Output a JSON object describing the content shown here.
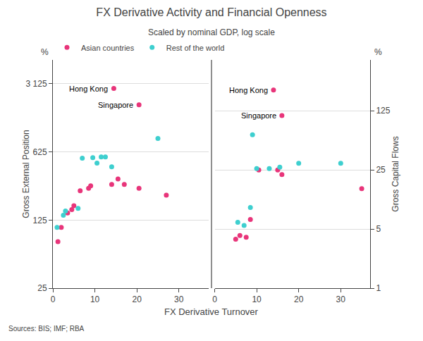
{
  "chart_data": [
    {
      "type": "scatter",
      "title": "FX Derivative Activity and Financial Openness",
      "subtitle": "Scaled by nominal GDP, log scale",
      "xlabel": "FX Derivative Turnover",
      "ylabel": "Gross External Position",
      "source": "Sources: BIS; IMF; RBA",
      "log": "y",
      "xlim": [
        0,
        37
      ],
      "xticks": [
        0,
        10,
        20,
        30
      ],
      "ylim": [
        25,
        5500
      ],
      "yticks": [
        25,
        125,
        625,
        {
          "value": 3125,
          "label": "3 125"
        }
      ],
      "grid": "y",
      "legend": "upper left",
      "series": [
        {
          "name": "Asian countries",
          "color": "#E8357A",
          "x": [
            1.2,
            2.0,
            3.5,
            4.5,
            5.0,
            6.5,
            8.5,
            9.0,
            14.0,
            15.5,
            17.0,
            20.5,
            27.0,
            14.5,
            20.5
          ],
          "values": [
            75,
            105,
            148,
            160,
            175,
            250,
            265,
            280,
            290,
            330,
            290,
            265,
            225,
            2800,
            1900
          ]
        },
        {
          "name": "Rest of the world",
          "color": "#3ECFCF",
          "x": [
            1.0,
            2.5,
            3.0,
            6.0,
            7.0,
            9.5,
            10.5,
            11.5,
            12.5,
            14.0,
            25.0
          ],
          "values": [
            105,
            140,
            155,
            165,
            540,
            545,
            480,
            555,
            555,
            440,
            860
          ]
        }
      ],
      "annotations": [
        {
          "text": "Hong Kong",
          "x": 14.5,
          "y": 2800
        },
        {
          "text": "Singapore",
          "x": 20.5,
          "y": 1900
        },
        {
          "text": "%"
        }
      ]
    },
    {
      "type": "scatter",
      "ylabel": "Gross Capital Flows",
      "log": "y",
      "xlim": [
        0,
        37
      ],
      "xticks": [
        0,
        10,
        20,
        30
      ],
      "ylim": [
        1,
        500
      ],
      "yticks": [
        1,
        5,
        25,
        125
      ],
      "grid": "y",
      "series": [
        {
          "name": "Asian countries",
          "color": "#E8357A",
          "x": [
            5.0,
            6.0,
            7.5,
            8.5,
            10.5,
            15.0,
            16.0,
            35.0,
            14.0,
            16.0
          ],
          "values": [
            3.8,
            4.2,
            4.0,
            6.5,
            25.0,
            25.0,
            22.0,
            15.0,
            220.0,
            110.0
          ]
        },
        {
          "name": "Rest of the world",
          "color": "#3ECFCF",
          "x": [
            5.5,
            7.0,
            8.5,
            9.0,
            10.0,
            13.0,
            15.5,
            20.0,
            30.0
          ],
          "values": [
            6.0,
            5.5,
            9.0,
            65.0,
            26.0,
            26.0,
            27.0,
            30.0,
            30.0
          ]
        }
      ],
      "annotations": [
        {
          "text": "Hong Kong",
          "x": 14.0,
          "y": 220.0
        },
        {
          "text": "Singapore",
          "x": 16.0,
          "y": 110.0
        },
        {
          "text": "%"
        }
      ]
    }
  ]
}
